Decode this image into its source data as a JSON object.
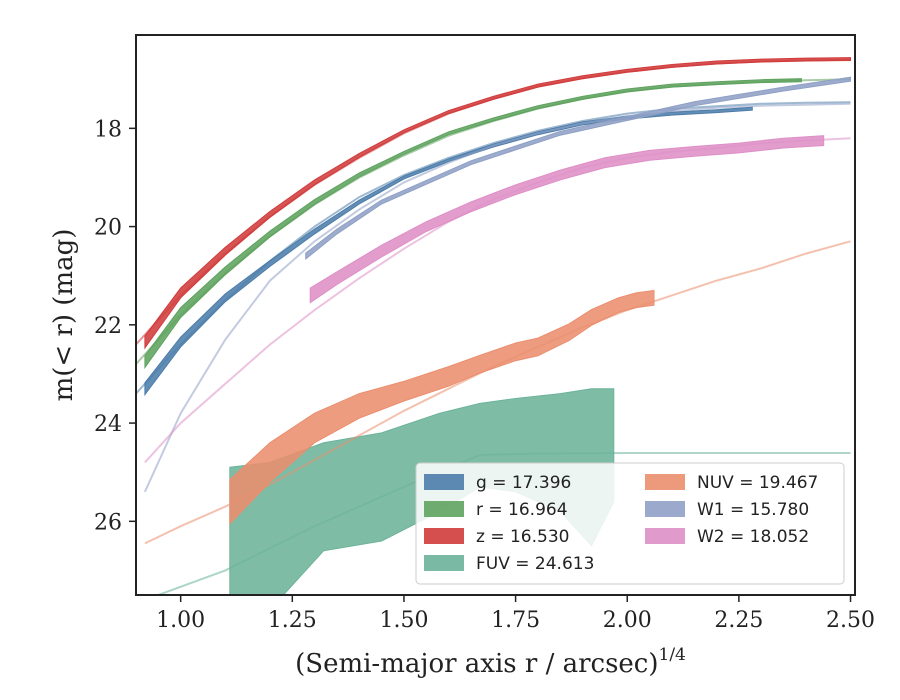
{
  "chart_data": {
    "type": "line",
    "xlabel": "(Semi-major axis r / arcsec)",
    "xlabel_sup": "1/4",
    "ylabel": "m(< r) (mag)",
    "xlim": [
      0.9,
      2.51
    ],
    "ylim": [
      27.5,
      16.1
    ],
    "y_inverted": true,
    "x_ticks": [
      1.0,
      1.25,
      1.5,
      1.75,
      2.0,
      2.25,
      2.5
    ],
    "x_tick_labels": [
      "1.00",
      "1.25",
      "1.50",
      "1.75",
      "2.00",
      "2.25",
      "2.50"
    ],
    "y_ticks": [
      18,
      20,
      22,
      24,
      26
    ],
    "y_tick_labels": [
      "18",
      "20",
      "22",
      "24",
      "26"
    ],
    "grid": false,
    "legend_position": "lower-right",
    "series": [
      {
        "band": "g",
        "legend_label": "g = 17.396",
        "color": "#4c7daa",
        "model_x": [
          0.9,
          1.0,
          1.1,
          1.2,
          1.3,
          1.4,
          1.5,
          1.6,
          1.7,
          1.8,
          1.9,
          2.0,
          2.1,
          2.2,
          2.3,
          2.4,
          2.5
        ],
        "model_y": [
          23.4,
          22.4,
          21.5,
          20.7,
          20.0,
          19.4,
          18.95,
          18.6,
          18.3,
          18.05,
          17.85,
          17.7,
          17.6,
          17.55,
          17.5,
          17.48,
          17.47
        ],
        "data_x": [
          0.92,
          1.0,
          1.1,
          1.2,
          1.3,
          1.4,
          1.5,
          1.6,
          1.7,
          1.8,
          1.9,
          2.0,
          2.1,
          2.2,
          2.28
        ],
        "data_y": [
          23.3,
          22.35,
          21.45,
          20.75,
          20.1,
          19.5,
          19.0,
          18.65,
          18.35,
          18.1,
          17.9,
          17.78,
          17.7,
          17.65,
          17.6
        ],
        "data_err": [
          0.12,
          0.1,
          0.08,
          0.06,
          0.05,
          0.04,
          0.03,
          0.03,
          0.03,
          0.03,
          0.03,
          0.03,
          0.03,
          0.03,
          0.03
        ]
      },
      {
        "band": "r",
        "legend_label": "r = 16.964",
        "color": "#5fa35f",
        "model_x": [
          0.9,
          1.0,
          1.1,
          1.2,
          1.3,
          1.4,
          1.5,
          1.6,
          1.7,
          1.8,
          1.9,
          2.0,
          2.1,
          2.2,
          2.3,
          2.4,
          2.5
        ],
        "model_y": [
          22.8,
          21.8,
          20.95,
          20.2,
          19.55,
          19.0,
          18.55,
          18.15,
          17.85,
          17.6,
          17.4,
          17.25,
          17.15,
          17.1,
          17.05,
          17.02,
          17.0
        ],
        "data_x": [
          0.92,
          1.0,
          1.1,
          1.2,
          1.3,
          1.4,
          1.5,
          1.6,
          1.7,
          1.8,
          1.9,
          2.0,
          2.1,
          2.2,
          2.3,
          2.39
        ],
        "data_y": [
          22.75,
          21.75,
          20.9,
          20.15,
          19.5,
          18.95,
          18.5,
          18.1,
          17.82,
          17.57,
          17.38,
          17.23,
          17.13,
          17.08,
          17.04,
          17.02
        ],
        "data_err": [
          0.12,
          0.1,
          0.08,
          0.06,
          0.05,
          0.04,
          0.03,
          0.03,
          0.03,
          0.03,
          0.03,
          0.03,
          0.03,
          0.03,
          0.03,
          0.03
        ]
      },
      {
        "band": "z",
        "legend_label": "z = 16.530",
        "color": "#d13c3c",
        "model_x": [
          0.9,
          1.0,
          1.1,
          1.2,
          1.3,
          1.4,
          1.5,
          1.6,
          1.7,
          1.8,
          1.9,
          2.0,
          2.1,
          2.2,
          2.3,
          2.4,
          2.5
        ],
        "model_y": [
          22.4,
          21.4,
          20.55,
          19.8,
          19.15,
          18.6,
          18.1,
          17.7,
          17.4,
          17.15,
          16.98,
          16.85,
          16.75,
          16.68,
          16.64,
          16.62,
          16.6
        ],
        "data_x": [
          0.92,
          1.0,
          1.1,
          1.2,
          1.3,
          1.4,
          1.5,
          1.6,
          1.7,
          1.8,
          1.9,
          2.0,
          2.1,
          2.2,
          2.3,
          2.4,
          2.5
        ],
        "data_y": [
          22.35,
          21.35,
          20.5,
          19.75,
          19.1,
          18.55,
          18.06,
          17.67,
          17.38,
          17.13,
          16.96,
          16.83,
          16.73,
          16.66,
          16.62,
          16.6,
          16.59
        ],
        "data_err": [
          0.12,
          0.1,
          0.08,
          0.06,
          0.05,
          0.04,
          0.03,
          0.03,
          0.03,
          0.03,
          0.03,
          0.03,
          0.03,
          0.03,
          0.03,
          0.03,
          0.03
        ]
      },
      {
        "band": "FUV",
        "legend_label": "FUV = 24.613",
        "color": "#6cb39a",
        "model_x": [
          0.95,
          1.1,
          1.3,
          1.5,
          1.67,
          1.8,
          2.0,
          2.2,
          2.5
        ],
        "model_y": [
          27.5,
          27.0,
          26.1,
          25.3,
          24.65,
          24.62,
          24.61,
          24.61,
          24.61
        ],
        "data_x": [
          1.11,
          1.2,
          1.32,
          1.45,
          1.58,
          1.67,
          1.75,
          1.85,
          1.92,
          1.97
        ],
        "data_upper": [
          24.9,
          24.8,
          24.4,
          24.2,
          23.8,
          23.6,
          23.5,
          23.4,
          23.3,
          23.3
        ],
        "data_lower": [
          28.0,
          27.8,
          26.6,
          26.4,
          25.8,
          25.3,
          25.4,
          25.8,
          26.5,
          25.6
        ]
      },
      {
        "band": "NUV",
        "legend_label": "NUV = 19.467",
        "color": "#eb8e6e",
        "model_x": [
          0.92,
          1.0,
          1.1,
          1.2,
          1.3,
          1.4,
          1.5,
          1.6,
          1.7,
          1.8,
          1.9,
          2.0,
          2.1,
          2.2,
          2.3,
          2.4,
          2.5
        ],
        "model_y": [
          26.45,
          26.1,
          25.7,
          25.25,
          24.75,
          24.25,
          23.75,
          23.3,
          22.85,
          22.45,
          22.05,
          21.7,
          21.4,
          21.1,
          20.85,
          20.55,
          20.3
        ],
        "data_x": [
          1.11,
          1.2,
          1.3,
          1.4,
          1.5,
          1.6,
          1.67,
          1.75,
          1.8,
          1.87,
          1.92,
          1.98,
          2.02,
          2.06
        ],
        "data_y": [
          25.6,
          24.8,
          24.1,
          23.65,
          23.35,
          23.05,
          22.8,
          22.55,
          22.45,
          22.15,
          21.85,
          21.6,
          21.5,
          21.45
        ],
        "data_err": [
          0.45,
          0.4,
          0.3,
          0.25,
          0.2,
          0.2,
          0.18,
          0.18,
          0.18,
          0.17,
          0.16,
          0.15,
          0.15,
          0.15
        ]
      },
      {
        "band": "W1",
        "legend_label": "W1 = 15.780",
        "color": "#8fa0c6",
        "model_x": [
          0.92,
          1.0,
          1.1,
          1.2,
          1.3,
          1.4,
          1.5,
          1.6,
          1.7,
          1.8,
          1.9,
          2.0,
          2.1,
          2.2,
          2.3,
          2.4,
          2.5
        ],
        "model_y": [
          25.4,
          23.8,
          22.3,
          21.1,
          20.3,
          19.65,
          19.1,
          18.7,
          18.35,
          18.1,
          17.9,
          17.75,
          17.65,
          17.58,
          17.54,
          17.52,
          17.5
        ],
        "data_x": [
          1.28,
          1.35,
          1.45,
          1.55,
          1.65,
          1.75,
          1.85,
          1.95,
          2.05,
          2.15,
          2.25,
          2.35,
          2.5
        ],
        "data_y": [
          20.6,
          20.1,
          19.5,
          19.1,
          18.7,
          18.4,
          18.1,
          17.9,
          17.7,
          17.5,
          17.35,
          17.2,
          17.0
        ],
        "data_err": [
          0.06,
          0.05,
          0.04,
          0.04,
          0.04,
          0.04,
          0.04,
          0.04,
          0.04,
          0.04,
          0.04,
          0.04,
          0.04
        ]
      },
      {
        "band": "W2",
        "legend_label": "W2 = 18.052",
        "color": "#de8fc6",
        "model_x": [
          0.92,
          1.0,
          1.1,
          1.2,
          1.3,
          1.4,
          1.5,
          1.6,
          1.7,
          1.8,
          1.9,
          2.0,
          2.1,
          2.2,
          2.3,
          2.4,
          2.5
        ],
        "model_y": [
          24.8,
          24.0,
          23.2,
          22.4,
          21.7,
          21.05,
          20.45,
          19.9,
          19.45,
          19.1,
          18.8,
          18.6,
          18.48,
          18.4,
          18.3,
          18.25,
          18.2
        ],
        "data_x": [
          1.29,
          1.35,
          1.45,
          1.55,
          1.65,
          1.75,
          1.85,
          1.95,
          2.05,
          2.15,
          2.25,
          2.35,
          2.44
        ],
        "data_y": [
          21.4,
          21.05,
          20.5,
          20.0,
          19.6,
          19.25,
          18.95,
          18.7,
          18.55,
          18.47,
          18.4,
          18.3,
          18.25
        ],
        "data_err": [
          0.15,
          0.13,
          0.12,
          0.1,
          0.1,
          0.1,
          0.1,
          0.1,
          0.1,
          0.1,
          0.1,
          0.1,
          0.1
        ]
      }
    ]
  }
}
